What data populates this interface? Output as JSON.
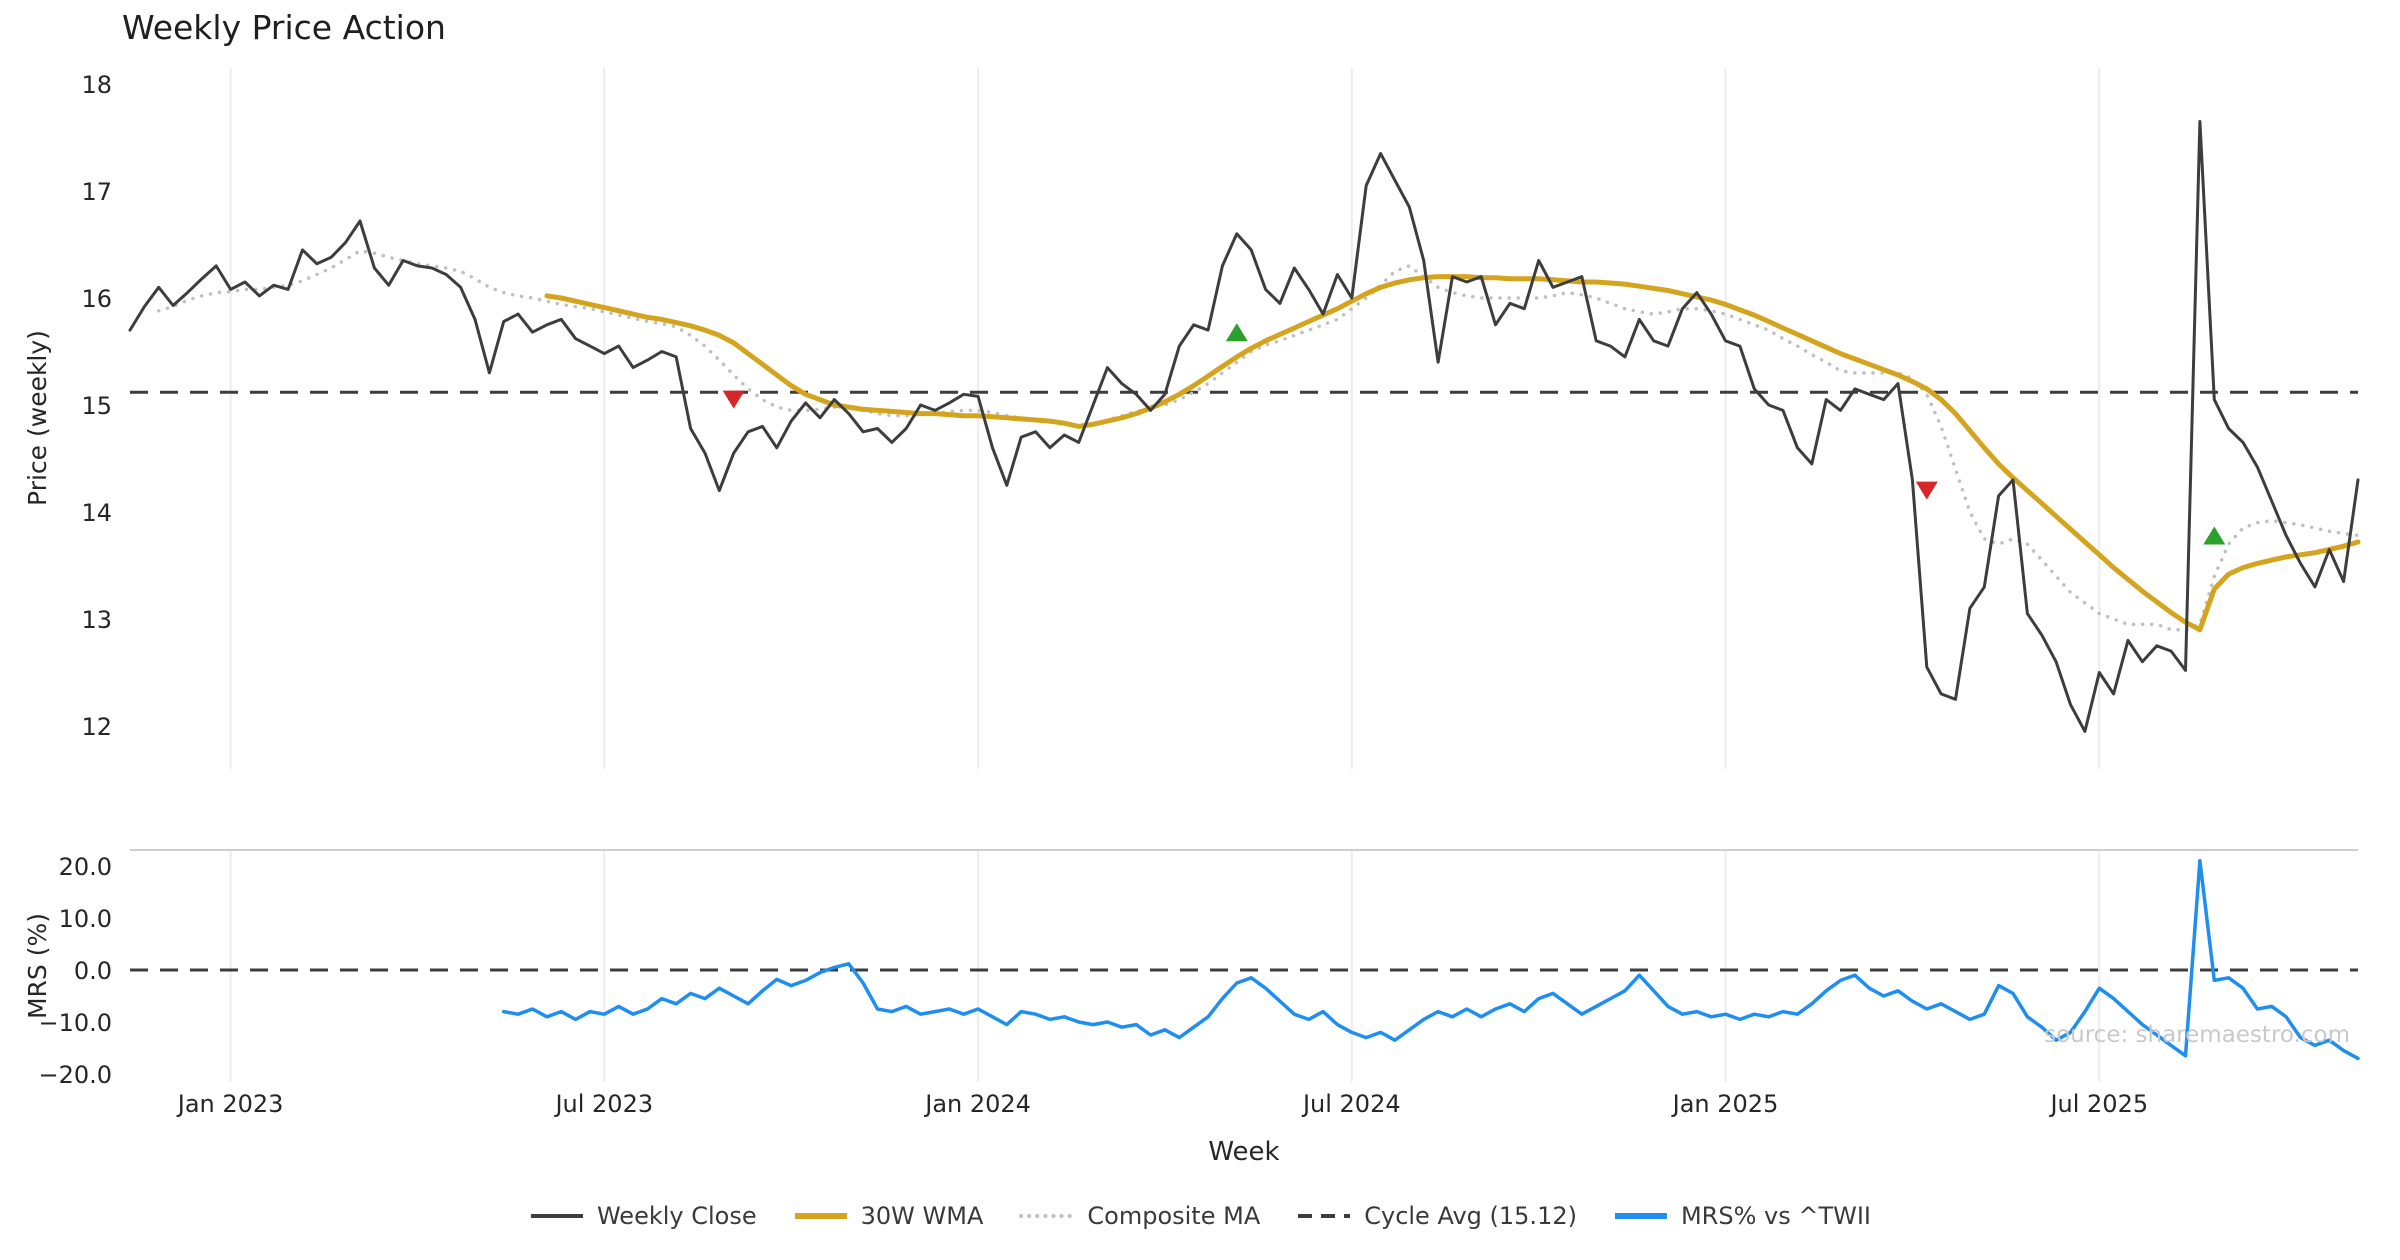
{
  "title": "Weekly Price Action",
  "watermark": "source: sharemaestro.com",
  "colors": {
    "close": "#3d3d3d",
    "wma": "#d5a41f",
    "composite": "#c0c0c0",
    "mrs": "#1f8ef1",
    "sell": "#d62728",
    "buy": "#2ca02c",
    "grid": "#ececec",
    "spine": "#cfcfcf",
    "text": "#262626",
    "watermark_color": "#c9c9c9"
  },
  "chart_data": [
    {
      "type": "line",
      "panel": "price",
      "title": "Weekly Price Action",
      "ylabel": "Price (weekly)",
      "ylim": [
        11.6,
        18.15
      ],
      "yticks": [
        18,
        17,
        16,
        15,
        14,
        13,
        12
      ],
      "grid": "vertical-only",
      "x_axis": {
        "label": "Week",
        "n_weeks": 156,
        "tick_weeks": [
          7,
          33,
          59,
          85,
          111,
          137
        ],
        "tick_labels": [
          "Jan 2023",
          "Jul 2023",
          "Jan 2024",
          "Jul 2024",
          "Jan 2025",
          "Jul 2025"
        ]
      },
      "cycle_avg": {
        "label": "Cycle Avg (15.12)",
        "value": 15.12
      },
      "series": [
        {
          "name": "Weekly Close",
          "color": "#3d3d3d",
          "style": "solid",
          "start_week": 0,
          "values": [
            15.7,
            15.92,
            16.1,
            15.93,
            16.05,
            16.18,
            16.3,
            16.08,
            16.15,
            16.02,
            16.12,
            16.08,
            16.45,
            16.32,
            16.38,
            16.52,
            16.72,
            16.28,
            16.12,
            16.35,
            16.3,
            16.28,
            16.22,
            16.1,
            15.8,
            15.3,
            15.78,
            15.85,
            15.68,
            15.75,
            15.8,
            15.62,
            15.55,
            15.48,
            15.55,
            15.35,
            15.42,
            15.5,
            15.45,
            14.78,
            14.55,
            14.2,
            14.55,
            14.75,
            14.8,
            14.6,
            14.85,
            15.02,
            14.88,
            15.05,
            14.92,
            14.75,
            14.78,
            14.65,
            14.78,
            15.0,
            14.95,
            15.02,
            15.1,
            15.08,
            14.6,
            14.25,
            14.7,
            14.75,
            14.6,
            14.72,
            14.65,
            15.0,
            15.35,
            15.2,
            15.1,
            14.95,
            15.1,
            15.55,
            15.75,
            15.7,
            16.3,
            16.6,
            16.45,
            16.08,
            15.95,
            16.28,
            16.08,
            15.85,
            16.22,
            16.0,
            17.05,
            17.35,
            17.1,
            16.85,
            16.35,
            15.4,
            16.2,
            16.15,
            16.2,
            15.75,
            15.95,
            15.9,
            16.35,
            16.1,
            16.15,
            16.2,
            15.6,
            15.55,
            15.45,
            15.8,
            15.6,
            15.55,
            15.9,
            16.05,
            15.85,
            15.6,
            15.55,
            15.15,
            15.0,
            14.95,
            14.6,
            14.45,
            15.05,
            14.95,
            15.15,
            15.1,
            15.05,
            15.2,
            14.3,
            12.55,
            12.3,
            12.25,
            13.1,
            13.3,
            14.15,
            14.3,
            13.05,
            12.85,
            12.6,
            12.2,
            11.95,
            12.5,
            12.3,
            12.8,
            12.6,
            12.75,
            12.7,
            12.52,
            17.65,
            15.05,
            14.78,
            14.65,
            14.42,
            14.1,
            13.78,
            13.52,
            13.3,
            13.65,
            13.35,
            14.3
          ]
        },
        {
          "name": "30W WMA",
          "color": "#d5a41f",
          "style": "solid",
          "start_week": 29,
          "values": [
            16.02,
            16.0,
            15.97,
            15.94,
            15.91,
            15.88,
            15.85,
            15.82,
            15.8,
            15.77,
            15.74,
            15.7,
            15.65,
            15.58,
            15.48,
            15.38,
            15.28,
            15.18,
            15.1,
            15.05,
            15.0,
            14.98,
            14.96,
            14.95,
            14.94,
            14.93,
            14.92,
            14.92,
            14.91,
            14.9,
            14.9,
            14.89,
            14.88,
            14.87,
            14.86,
            14.85,
            14.83,
            14.8,
            14.82,
            14.85,
            14.88,
            14.92,
            14.97,
            15.03,
            15.1,
            15.18,
            15.27,
            15.36,
            15.45,
            15.53,
            15.6,
            15.66,
            15.72,
            15.78,
            15.84,
            15.9,
            15.97,
            16.04,
            16.1,
            16.14,
            16.17,
            16.19,
            16.2,
            16.2,
            16.2,
            16.19,
            16.19,
            16.18,
            16.18,
            16.18,
            16.17,
            16.16,
            16.15,
            16.15,
            16.14,
            16.13,
            16.11,
            16.09,
            16.07,
            16.04,
            16.01,
            15.98,
            15.94,
            15.89,
            15.84,
            15.78,
            15.72,
            15.66,
            15.6,
            15.54,
            15.48,
            15.43,
            15.38,
            15.33,
            15.28,
            15.22,
            15.15,
            15.05,
            14.92,
            14.76,
            14.6,
            14.45,
            14.32,
            14.2,
            14.08,
            13.96,
            13.84,
            13.72,
            13.6,
            13.48,
            13.37,
            13.26,
            13.16,
            13.06,
            12.97,
            12.9,
            13.28,
            13.42,
            13.48,
            13.52,
            13.55,
            13.58,
            13.6,
            13.62,
            13.65,
            13.68,
            13.72
          ]
        },
        {
          "name": "Composite MA",
          "color": "#c0c0c0",
          "style": "dotted",
          "start_week": 2,
          "values": [
            15.88,
            15.92,
            15.98,
            16.02,
            16.05,
            16.06,
            16.08,
            16.08,
            16.1,
            16.12,
            16.16,
            16.22,
            16.28,
            16.36,
            16.44,
            16.42,
            16.38,
            16.35,
            16.32,
            16.3,
            16.28,
            16.25,
            16.18,
            16.1,
            16.05,
            16.02,
            16.0,
            15.97,
            15.94,
            15.92,
            15.9,
            15.87,
            15.84,
            15.81,
            15.78,
            15.76,
            15.73,
            15.65,
            15.55,
            15.42,
            15.28,
            15.15,
            15.05,
            14.98,
            14.95,
            14.95,
            14.96,
            14.98,
            14.97,
            14.95,
            14.92,
            14.9,
            14.9,
            14.91,
            14.92,
            14.94,
            14.95,
            14.95,
            14.93,
            14.9,
            14.88,
            14.86,
            14.84,
            14.82,
            14.8,
            14.82,
            14.86,
            14.9,
            14.94,
            14.97,
            15.0,
            15.05,
            15.12,
            15.2,
            15.3,
            15.4,
            15.5,
            15.56,
            15.6,
            15.65,
            15.7,
            15.75,
            15.8,
            15.9,
            16.0,
            16.12,
            16.25,
            16.3,
            16.2,
            16.1,
            16.05,
            16.02,
            16.0,
            16.0,
            16.0,
            16.0,
            16.0,
            16.02,
            16.05,
            16.03,
            16.0,
            15.95,
            15.9,
            15.87,
            15.85,
            15.87,
            15.9,
            15.9,
            15.88,
            15.85,
            15.8,
            15.75,
            15.7,
            15.62,
            15.55,
            15.47,
            15.4,
            15.32,
            15.3,
            15.3,
            15.3,
            15.3,
            15.25,
            15.1,
            14.8,
            14.4,
            14.0,
            13.75,
            13.7,
            13.75,
            13.7,
            13.55,
            13.4,
            13.25,
            13.15,
            13.05,
            13.0,
            12.95,
            12.95,
            12.95,
            12.9,
            12.9,
            12.95,
            13.4,
            13.7,
            13.85,
            13.9,
            13.92,
            13.9,
            13.88,
            13.85,
            13.82,
            13.8,
            13.78
          ]
        }
      ],
      "markers": {
        "sell": {
          "color": "#d62728",
          "shape": "triangle-down",
          "points": [
            {
              "week": 42,
              "price": 15.05
            },
            {
              "week": 125,
              "price": 14.2
            }
          ]
        },
        "buy": {
          "color": "#2ca02c",
          "shape": "triangle-up",
          "points": [
            {
              "week": 77,
              "price": 15.68
            },
            {
              "week": 145,
              "price": 13.78
            }
          ]
        }
      }
    },
    {
      "type": "line",
      "panel": "mrs",
      "ylabel": "MRS (%)",
      "ylim": [
        -21.5,
        23
      ],
      "yticks": [
        {
          "value": 20,
          "label": "20.0"
        },
        {
          "value": 10,
          "label": "10.0"
        },
        {
          "value": 0,
          "label": "0.0"
        },
        {
          "value": -10,
          "label": "−10.0"
        },
        {
          "value": -20,
          "label": "−20.0"
        }
      ],
      "zero_line": 0,
      "series": [
        {
          "name": "MRS% vs ^TWII",
          "color": "#1f8ef1",
          "style": "solid",
          "start_week": 26,
          "values": [
            -8.0,
            -8.5,
            -7.5,
            -9.0,
            -8.0,
            -9.5,
            -8.0,
            -8.5,
            -7.0,
            -8.5,
            -7.5,
            -5.5,
            -6.5,
            -4.5,
            -5.5,
            -3.5,
            -5.0,
            -6.5,
            -4.0,
            -1.8,
            -3.0,
            -2.0,
            -0.5,
            0.5,
            1.2,
            -2.5,
            -7.5,
            -8.0,
            -7.0,
            -8.5,
            -8.0,
            -7.5,
            -8.5,
            -7.5,
            -9.0,
            -10.5,
            -8.0,
            -8.5,
            -9.5,
            -9.0,
            -10.0,
            -10.5,
            -10.0,
            -11.0,
            -10.5,
            -12.5,
            -11.5,
            -13.0,
            -11.0,
            -9.0,
            -5.5,
            -2.5,
            -1.5,
            -3.5,
            -6.0,
            -8.5,
            -9.5,
            -8.0,
            -10.5,
            -12.0,
            -13.0,
            -12.0,
            -13.5,
            -11.5,
            -9.5,
            -8.0,
            -9.0,
            -7.5,
            -9.0,
            -7.5,
            -6.5,
            -8.0,
            -5.5,
            -4.5,
            -6.5,
            -8.5,
            -7.0,
            -5.5,
            -4.0,
            -1.0,
            -4.0,
            -7.0,
            -8.5,
            -8.0,
            -9.0,
            -8.5,
            -9.5,
            -8.5,
            -9.0,
            -8.0,
            -8.5,
            -6.5,
            -4.0,
            -2.0,
            -1.0,
            -3.5,
            -5.0,
            -4.0,
            -6.0,
            -7.5,
            -6.5,
            -8.0,
            -9.5,
            -8.5,
            -3.0,
            -4.5,
            -9.0,
            -11.0,
            -13.5,
            -12.0,
            -8.0,
            -3.5,
            -5.5,
            -8.0,
            -10.5,
            -12.5,
            -14.5,
            -16.5,
            21.0,
            -2.0,
            -1.5,
            -3.5,
            -7.5,
            -7.0,
            -9.0,
            -13.0,
            -14.5,
            -13.5,
            -15.5,
            -17.0
          ]
        }
      ]
    }
  ],
  "legend": {
    "items": [
      {
        "label": "Weekly Close",
        "color": "#3d3d3d",
        "style": "solid"
      },
      {
        "label": "30W WMA",
        "color": "#d5a41f",
        "style": "solid-thick"
      },
      {
        "label": "Composite MA",
        "color": "#c0c0c0",
        "style": "dotted"
      },
      {
        "label": "Cycle Avg (15.12)",
        "color": "#3d3d3d",
        "style": "dashed"
      },
      {
        "label": "MRS% vs ^TWII",
        "color": "#1f8ef1",
        "style": "solid-thick"
      }
    ]
  }
}
